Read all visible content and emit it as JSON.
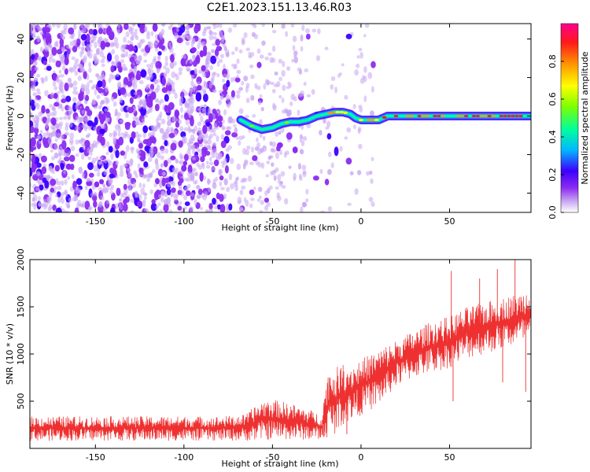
{
  "figure": {
    "title": "C2E1.2023.151.13.46.R03"
  },
  "chart_data": [
    {
      "type": "heatmap",
      "panel": "spectrogram",
      "xlabel": "Height of straight line (km)",
      "ylabel": "Frequency (Hz)",
      "xlim": [
        -187,
        96
      ],
      "ylim": [
        -50,
        48
      ],
      "x_ticks": [
        -150,
        -100,
        -50,
        0,
        50
      ],
      "y_ticks": [
        -40,
        -20,
        0,
        20,
        40
      ],
      "grid": false,
      "colorbar": {
        "label": "Normalized spectral amplitude",
        "range": [
          0,
          1
        ],
        "ticks": [
          "0.0",
          "0.2",
          "0.4",
          "0.6",
          "0.8"
        ],
        "colormap": [
          "#ffffff",
          "#c8a6f2",
          "#8b2cf0",
          "#3c00ff",
          "#00b8ff",
          "#00ff9c",
          "#7cff00",
          "#ffff00",
          "#ff9a00",
          "#ff1a1a",
          "#ff0090"
        ]
      },
      "features": {
        "noise_region_km": [
          -187,
          -30
        ],
        "signal_trace": {
          "x": [
            -68,
            -62,
            -56,
            -50,
            -45,
            -40,
            -35,
            -30,
            -25,
            -20,
            -15,
            -10,
            -6,
            -3,
            0,
            5,
            10,
            15,
            25,
            40,
            60,
            80,
            96
          ],
          "y": [
            -2,
            -5,
            -7,
            -6,
            -4,
            -3,
            -3,
            -2,
            0,
            1,
            2,
            2,
            1,
            -1,
            -2,
            -2,
            -2,
            0,
            0,
            0,
            0,
            0,
            0
          ]
        }
      }
    },
    {
      "type": "line",
      "panel": "snr",
      "xlabel": "Height of straight line (km)",
      "ylabel": "SNR (10 * v/v)",
      "xlim": [
        -187,
        96
      ],
      "ylim": [
        0,
        2000
      ],
      "x_ticks": [
        -150,
        -100,
        -50,
        0,
        50
      ],
      "y_ticks": [
        500,
        1000,
        1500,
        2000
      ],
      "grid": false,
      "series": [
        {
          "color": "#ee3030",
          "envelope": {
            "x": [
              -187,
              -160,
              -140,
              -120,
              -100,
              -80,
              -65,
              -60,
              -55,
              -50,
              -45,
              -40,
              -35,
              -30,
              -25,
              -22,
              -20,
              -18,
              -15,
              -10,
              -5,
              0,
              5,
              10,
              15,
              20,
              30,
              40,
              50,
              55,
              60,
              70,
              80,
              90,
              96
            ],
            "low": [
              80,
              80,
              80,
              80,
              80,
              80,
              80,
              80,
              90,
              90,
              90,
              90,
              90,
              90,
              90,
              90,
              100,
              120,
              150,
              250,
              300,
              350,
              400,
              450,
              550,
              650,
              750,
              800,
              850,
              900,
              950,
              1000,
              1050,
              1100,
              1150
            ],
            "high": [
              340,
              340,
              340,
              340,
              340,
              340,
              360,
              450,
              520,
              520,
              500,
              480,
              450,
              420,
              380,
              360,
              700,
              850,
              850,
              900,
              900,
              950,
              1000,
              1050,
              1100,
              1150,
              1250,
              1350,
              1400,
              1450,
              1500,
              1550,
              1600,
              1650,
              1700
            ]
          },
          "spikes": [
            {
              "x": 51,
              "y": 1880
            },
            {
              "x": 52,
              "y": 500
            },
            {
              "x": 67,
              "y": 1800
            },
            {
              "x": 77,
              "y": 1900
            },
            {
              "x": 80,
              "y": 700
            },
            {
              "x": 87,
              "y": 2000
            },
            {
              "x": 93,
              "y": 600
            },
            {
              "x": -21,
              "y": 120
            },
            {
              "x": -8,
              "y": 150
            }
          ]
        }
      ]
    }
  ]
}
